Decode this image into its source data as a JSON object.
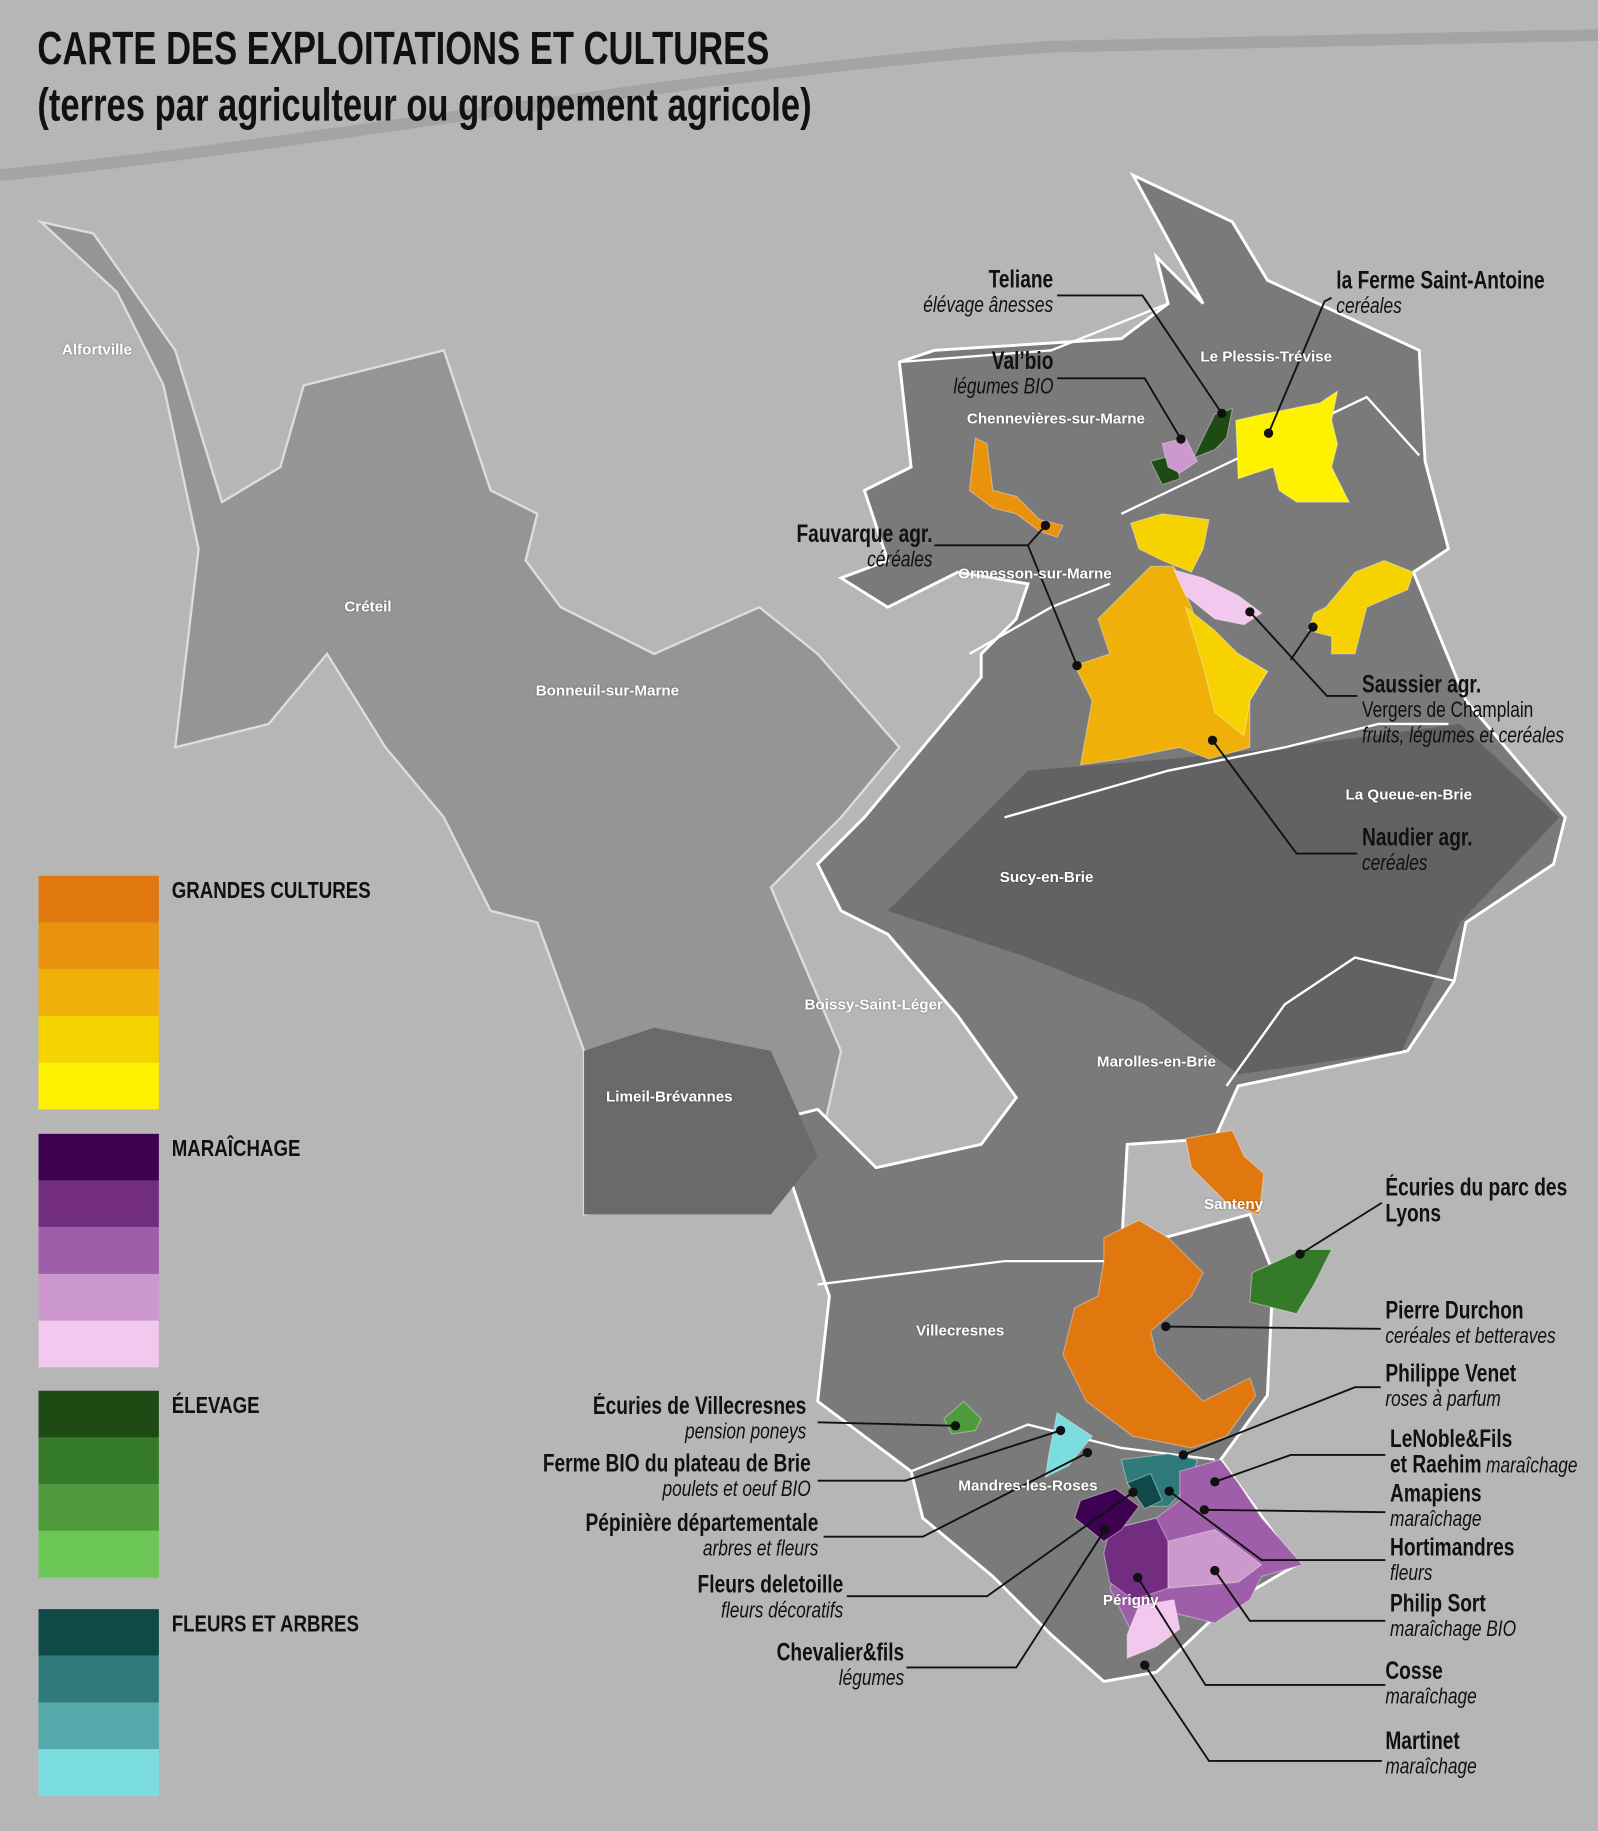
{
  "title": {
    "line1": "CARTE DES EXPLOITATIONS ET CULTURES",
    "line2": "(terres par agriculteur ou groupement agricole)"
  },
  "legend": [
    {
      "label": "GRANDES CULTURES",
      "colors": [
        "#e0780f",
        "#e8920d",
        "#f0b00a",
        "#f6d200",
        "#fff200"
      ]
    },
    {
      "label": "MARAÎCHAGE",
      "colors": [
        "#3e0050",
        "#732d80",
        "#9f5eaa",
        "#cc98cd",
        "#f2c8ef"
      ]
    },
    {
      "label": "ÉLEVAGE",
      "colors": [
        "#1e4a14",
        "#347a28",
        "#4f9b3c",
        "#6cc656"
      ]
    },
    {
      "label": "FLEURS ET ARBRES",
      "colors": [
        "#0f4a48",
        "#2f7b7c",
        "#56a9ab",
        "#7cdde0"
      ]
    }
  ],
  "towns": [
    "Alfortville",
    "Créteil",
    "Bonneuil-sur-Marne",
    "Chennevières-sur-Marne",
    "Le Plessis-Trévise",
    "Ormesson-sur-Marne",
    "La Queue-en-Brie",
    "Sucy-en-Brie",
    "Boissy-Saint-Léger",
    "Marolles-en-Brie",
    "Limeil-Brévannes",
    "Santeny",
    "Villecresnes",
    "Mandres-les-Roses",
    "Périgny"
  ],
  "callouts": [
    {
      "name": "Teliane",
      "detail": "élévage ânesses"
    },
    {
      "name": "la Ferme Saint-Antoine",
      "detail": "ceréales"
    },
    {
      "name": "Val’bio",
      "detail": "légumes BIO"
    },
    {
      "name": "Fauvarque agr.",
      "detail": "céréales"
    },
    {
      "name": "Saussier agr.",
      "plain": "Vergers de Champlain",
      "detail": "fruits, légumes et ceréales"
    },
    {
      "name": "Naudier agr.",
      "detail": "ceréales"
    },
    {
      "name": "Écuries du parc des",
      "name2": "Lyons"
    },
    {
      "name": "Pierre Durchon",
      "detail": "ceréales et betteraves"
    },
    {
      "name": "Philippe Venet",
      "detail": "roses à parfum"
    },
    {
      "name": "LeNoble&Fils",
      "name2": "et Raehim",
      "detail_inline": "maraîchage"
    },
    {
      "name": "Amapiens",
      "detail": "maraîchage"
    },
    {
      "name": "Hortimandres",
      "detail": "fleurs"
    },
    {
      "name": "Philip Sort",
      "detail": "maraîchage BIO"
    },
    {
      "name": "Cosse",
      "detail": "maraîchage"
    },
    {
      "name": "Martinet",
      "detail": "maraîchage"
    },
    {
      "name": "Écuries de Villecresnes",
      "detail": "pension poneys"
    },
    {
      "name": "Ferme BIO du plateau de Brie",
      "detail": "poulets et oeuf BIO"
    },
    {
      "name": "Pépinière départementale",
      "detail": "arbres et fleurs"
    },
    {
      "name": "Fleurs deletoille",
      "detail": "fleurs décoratifs"
    },
    {
      "name": "Chevalier&fils",
      "detail": "légumes"
    }
  ]
}
